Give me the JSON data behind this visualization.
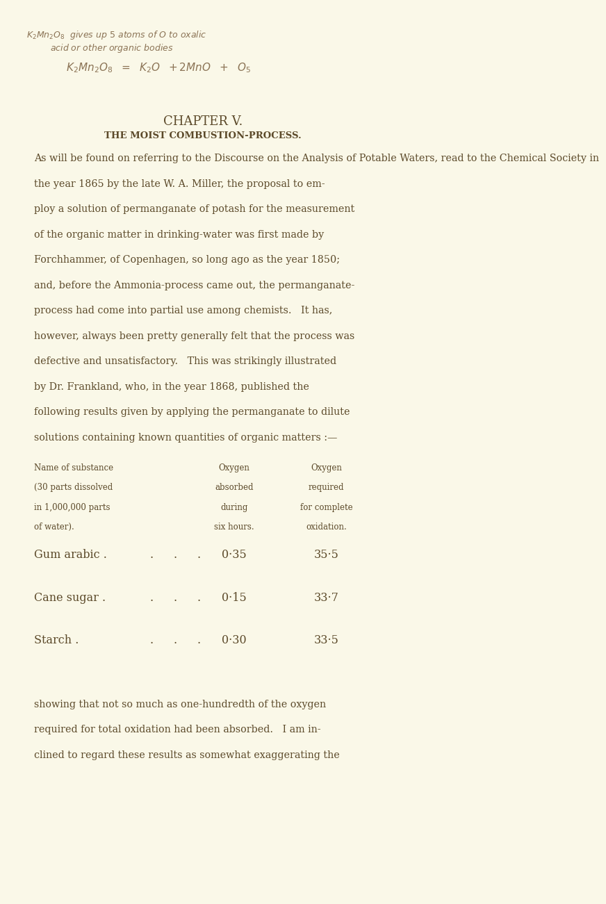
{
  "bg_color": "#faf8e8",
  "handwriting_color": "#8B7355",
  "text_color": "#5C4A2A",
  "page_width": 8.0,
  "page_height": 12.81,
  "chapter_title": "CHAPTER V.",
  "chapter_subtitle": "THE MOIST COMBUSTION-PROCESS.",
  "paragraph1": "As will be found on referring to the Discourse on the Analysis of Potable Waters, read to the Chemical Society in\nthe year 1865 by the late W. A. Miller, the proposal to em-\nploy a solution of permanganate of potash for the measurement\nof the organic matter in drinking-water was first made by\nForchhammer, of Copenhagen, so long ago as the year 1850;\nand, before the Ammonia-process came out, the permanganate-\nprocess had come into partial use among chemists.   It has,\nhowever, always been pretty generally felt that the process was\ndefective and unsatisfactory.   This was strikingly illustrated\nby Dr. Frankland, who, in the year 1868, published the\nfollowing results given by applying the permanganate to dilute\nsolutions containing known quantities of organic matters :—",
  "table_header_col1_line1": "Name of substance",
  "table_header_col1_line2": "(30 parts dissolved",
  "table_header_col1_line3": "in 1,000,000 parts",
  "table_header_col1_line4": "of water).",
  "table_header_col2_line1": "Oxygen",
  "table_header_col2_line2": "absorbed",
  "table_header_col2_line3": "during",
  "table_header_col2_line4": "six hours.",
  "table_header_col3_line1": "Oxygen",
  "table_header_col3_line2": "required",
  "table_header_col3_line3": "for complete",
  "table_header_col3_line4": "oxidation.",
  "table_rows": [
    [
      "Gum arabic",
      "0·35",
      "35·5"
    ],
    [
      "Cane sugar",
      "0·15",
      "33·7"
    ],
    [
      "Starch",
      "0·30",
      "33·5"
    ]
  ],
  "paragraph2": "showing that not so much as one-hundredth of the oxygen\nrequired for total oxidation had been absorbed.   I am in-\nclined to regard these results as somewhat exaggerating the",
  "handwriting_line1": "K₂Mn₂O₈  gives up 5 atoms of O to oxalic",
  "handwriting_line2": "acid or other organic bodies",
  "handwriting_eq": "  K₂Mn₂O₈  =  K₂O  +2MnO  +  O₅"
}
